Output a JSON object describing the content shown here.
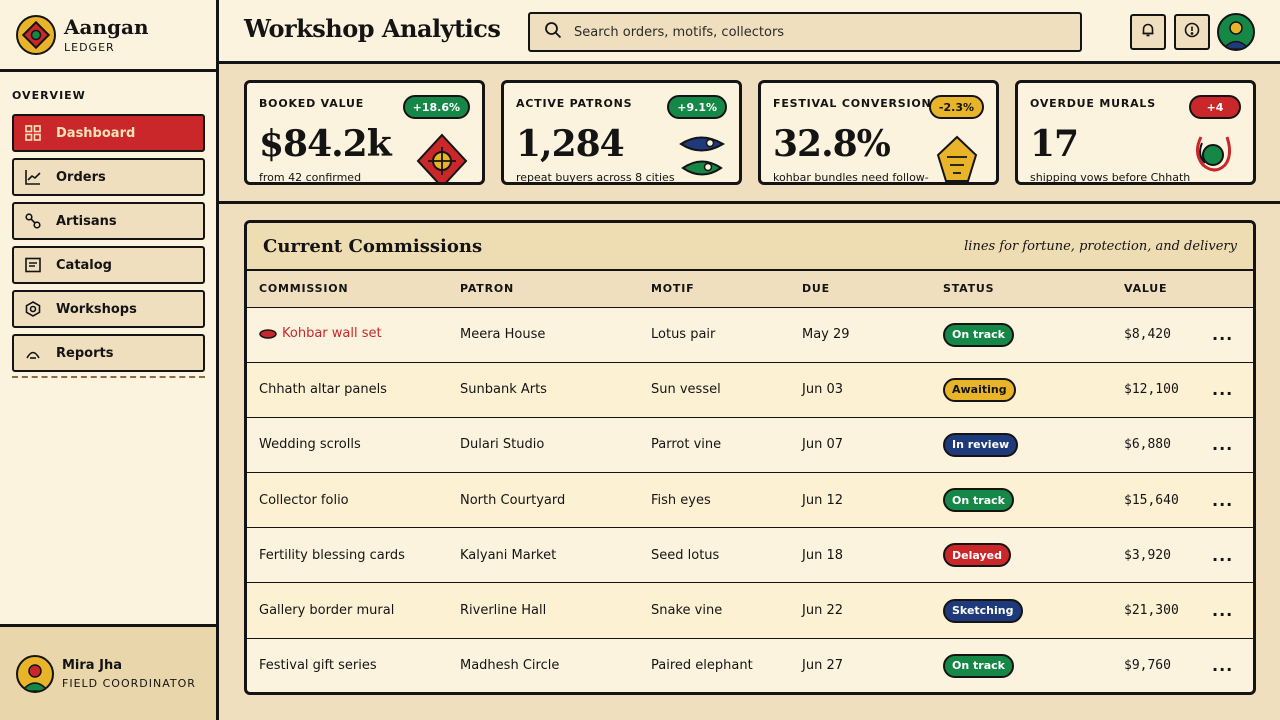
{
  "brand": {
    "name": "Aangan",
    "subtitle": "LEDGER"
  },
  "nav": {
    "heading": "OVERVIEW",
    "items": [
      {
        "label": "Dashboard",
        "icon": "grid-icon",
        "active": true
      },
      {
        "label": "Orders",
        "icon": "trend-icon"
      },
      {
        "label": "Artisans",
        "icon": "link-nodes-icon"
      },
      {
        "label": "Catalog",
        "icon": "list-icon"
      },
      {
        "label": "Workshops",
        "icon": "hex-gear-icon"
      },
      {
        "label": "Reports",
        "icon": "arch-icon"
      }
    ]
  },
  "user": {
    "name": "Mira Jha",
    "role": "FIELD COORDINATOR"
  },
  "header": {
    "title": "Workshop Analytics",
    "search_placeholder": "Search orders, motifs, collectors",
    "icons": [
      "bell-icon",
      "alert-icon",
      "profile-avatar"
    ]
  },
  "kpis": [
    {
      "label": "BOOKED VALUE",
      "delta": "+18.6%",
      "delta_color": "#158848",
      "value": "$84.2k",
      "sub": "from 42 confirmed",
      "art": "kite-motif-icon"
    },
    {
      "label": "ACTIVE PATRONS",
      "delta": "+9.1%",
      "delta_color": "#158848",
      "value": "1,284",
      "sub": "repeat buyers across 8 cities",
      "art": "fish-eyes-icon"
    },
    {
      "label": "FESTIVAL CONVERSION",
      "delta": "-2.3%",
      "delta_color": "#e8b52a",
      "value": "32.8%",
      "sub": "kohbar bundles need follow-",
      "art": "lamp-motif-icon"
    },
    {
      "label": "OVERDUE MURALS",
      "delta": "+4",
      "delta_color": "#c9272a",
      "value": "17",
      "sub": "shipping vows before Chhath",
      "art": "orb-motif-icon"
    }
  ],
  "commissions": {
    "title": "Current Commissions",
    "tagline": "lines for fortune, protection, and delivery",
    "columns": [
      "COMMISSION",
      "PATRON",
      "MOTIF",
      "DUE",
      "STATUS",
      "VALUE"
    ],
    "rows": [
      {
        "commission": "Kohbar wall set",
        "patron": "Meera House",
        "motif": "Lotus pair",
        "due": "May 29",
        "status": "On track",
        "value": "$8,420",
        "highlight": true
      },
      {
        "commission": "Chhath altar panels",
        "patron": "Sunbank Arts",
        "motif": "Sun vessel",
        "due": "Jun 03",
        "status": "Awaiting",
        "value": "$12,100"
      },
      {
        "commission": "Wedding scrolls",
        "patron": "Dulari Studio",
        "motif": "Parrot vine",
        "due": "Jun 07",
        "status": "In review",
        "value": "$6,880"
      },
      {
        "commission": "Collector folio",
        "patron": "North Courtyard",
        "motif": "Fish eyes",
        "due": "Jun 12",
        "status": "On track",
        "value": "$15,640"
      },
      {
        "commission": "Fertility blessing cards",
        "patron": "Kalyani Market",
        "motif": "Seed lotus",
        "due": "Jun 18",
        "status": "Delayed",
        "value": "$3,920"
      },
      {
        "commission": "Gallery border mural",
        "patron": "Riverline Hall",
        "motif": "Snake vine",
        "due": "Jun 22",
        "status": "Sketching",
        "value": "$21,300"
      },
      {
        "commission": "Festival gift series",
        "patron": "Madhesh Circle",
        "motif": "Paired elephant",
        "due": "Jun 27",
        "status": "On track",
        "value": "$9,760"
      }
    ],
    "row_action": "...",
    "status_colors": {
      "On track": {
        "bg": "#158848",
        "fg": "#ffffff"
      },
      "Awaiting": {
        "bg": "#e8b52a",
        "fg": "#141414"
      },
      "In review": {
        "bg": "#1e3a7a",
        "fg": "#ffffff"
      },
      "Delayed": {
        "bg": "#c9272a",
        "fg": "#ffffff"
      },
      "Sketching": {
        "bg": "#1e3a7a",
        "fg": "#ffffff"
      }
    }
  },
  "colors": {
    "accent_red": "#c9272a",
    "accent_green": "#158848",
    "accent_yellow": "#e8b52a",
    "accent_blue": "#1e3a7a",
    "paper": "#fcf3de",
    "sand": "#f0dfbf"
  }
}
